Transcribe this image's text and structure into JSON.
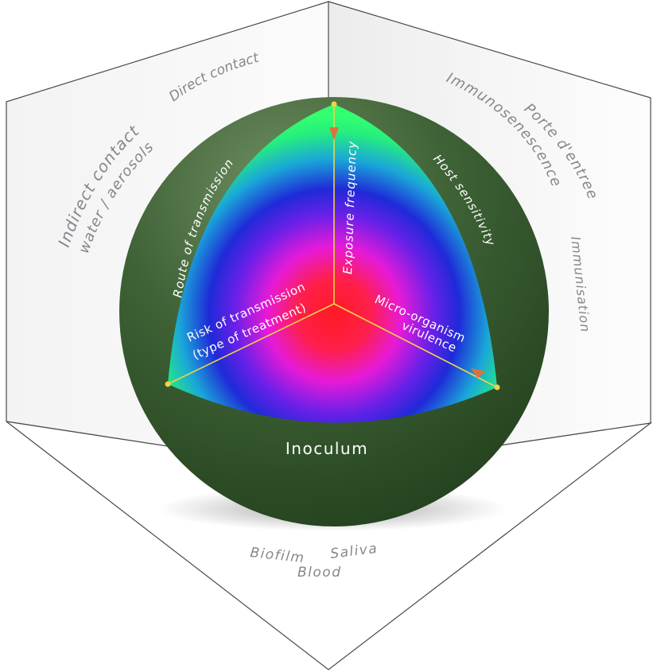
{
  "left_wall": {
    "direct_contact": "Direct contact",
    "indirect_contact": "Indirect contact",
    "water_aerosols": "water / aerosols"
  },
  "right_wall": {
    "immunosenescence": "Immunosenescence",
    "porte_dentree": "Porte d'entree",
    "immunisation": "Immunisation"
  },
  "floor": {
    "biofilm": "Biofilm",
    "saliva": "Saliva",
    "blood": "Blood"
  },
  "sphere": {
    "route_of_transmission": "Route of transmission",
    "exposure_frequency": "Exposure frequency",
    "host_sensitivity": "Host sensitivity",
    "risk_line1": "Risk of transmission",
    "risk_line2": "(type of treatment)",
    "virulence_line1": "Micro-organism",
    "virulence_line2": "virulence",
    "inoculum": "Inoculum"
  },
  "colors": {
    "sphere_dark": "#2a4a22",
    "sphere_light": "#5e7f52",
    "core_red": "#ff1a2a",
    "mid_magenta": "#d01ccc",
    "mid_blue": "#2525d8",
    "edge_green": "#22f07a",
    "axis_line": "#f2d24a",
    "arrow": "#e0703a"
  }
}
